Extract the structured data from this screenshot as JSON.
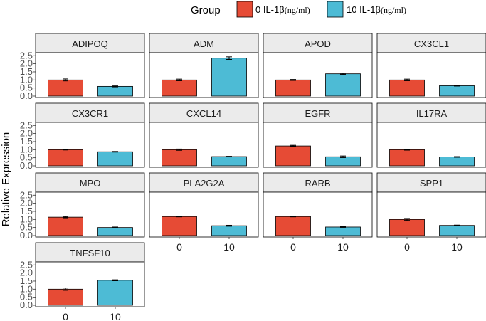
{
  "chart_data": {
    "type": "bar",
    "facet": true,
    "ylabel": "Relative Expression",
    "xlabel": "",
    "ylim": [
      0,
      2.6
    ],
    "y_ticks": [
      "0.0",
      "0.5",
      "1.0",
      "1.5",
      "2.0",
      "2.5"
    ],
    "categories": [
      "0",
      "10"
    ],
    "legend": {
      "title": "Group",
      "position": "top",
      "entries": [
        {
          "prefix": "0 IL-1β",
          "unit": "(ng/ml)",
          "color": "#E64B35"
        },
        {
          "prefix": "10 IL-1β",
          "unit": "(ng/ml)",
          "color": "#4DBBD5"
        }
      ]
    },
    "panels": [
      {
        "gene": "ADIPOQ",
        "values": [
          1.0,
          0.6
        ],
        "errors": [
          0.06,
          0.03
        ]
      },
      {
        "gene": "ADM",
        "values": [
          1.0,
          2.35
        ],
        "errors": [
          0.05,
          0.08
        ]
      },
      {
        "gene": "APOD",
        "values": [
          1.0,
          1.38
        ],
        "errors": [
          0.03,
          0.04
        ]
      },
      {
        "gene": "CX3CL1",
        "values": [
          1.0,
          0.64
        ],
        "errors": [
          0.05,
          0.02
        ]
      },
      {
        "gene": "CX3CR1",
        "values": [
          1.0,
          0.87
        ],
        "errors": [
          0.02,
          0.02
        ]
      },
      {
        "gene": "CXCL14",
        "values": [
          1.0,
          0.57
        ],
        "errors": [
          0.04,
          0.02
        ]
      },
      {
        "gene": "EGFR",
        "values": [
          1.23,
          0.56
        ],
        "errors": [
          0.04,
          0.05
        ]
      },
      {
        "gene": "IL17RA",
        "values": [
          1.0,
          0.55
        ],
        "errors": [
          0.03,
          0.02
        ]
      },
      {
        "gene": "MPO",
        "values": [
          1.14,
          0.5
        ],
        "errors": [
          0.04,
          0.03
        ]
      },
      {
        "gene": "PLA2G2A",
        "values": [
          1.18,
          0.61
        ],
        "errors": [
          0.02,
          0.03
        ]
      },
      {
        "gene": "RARB",
        "values": [
          1.18,
          0.53
        ],
        "errors": [
          0.02,
          0.02
        ]
      },
      {
        "gene": "SPP1",
        "values": [
          1.0,
          0.63
        ],
        "errors": [
          0.06,
          0.02
        ]
      },
      {
        "gene": "TNFSF10",
        "values": [
          1.0,
          1.55
        ],
        "errors": [
          0.07,
          0.03
        ]
      }
    ],
    "colors": {
      "control": "#E64B35",
      "treated": "#4DBBD5"
    }
  }
}
